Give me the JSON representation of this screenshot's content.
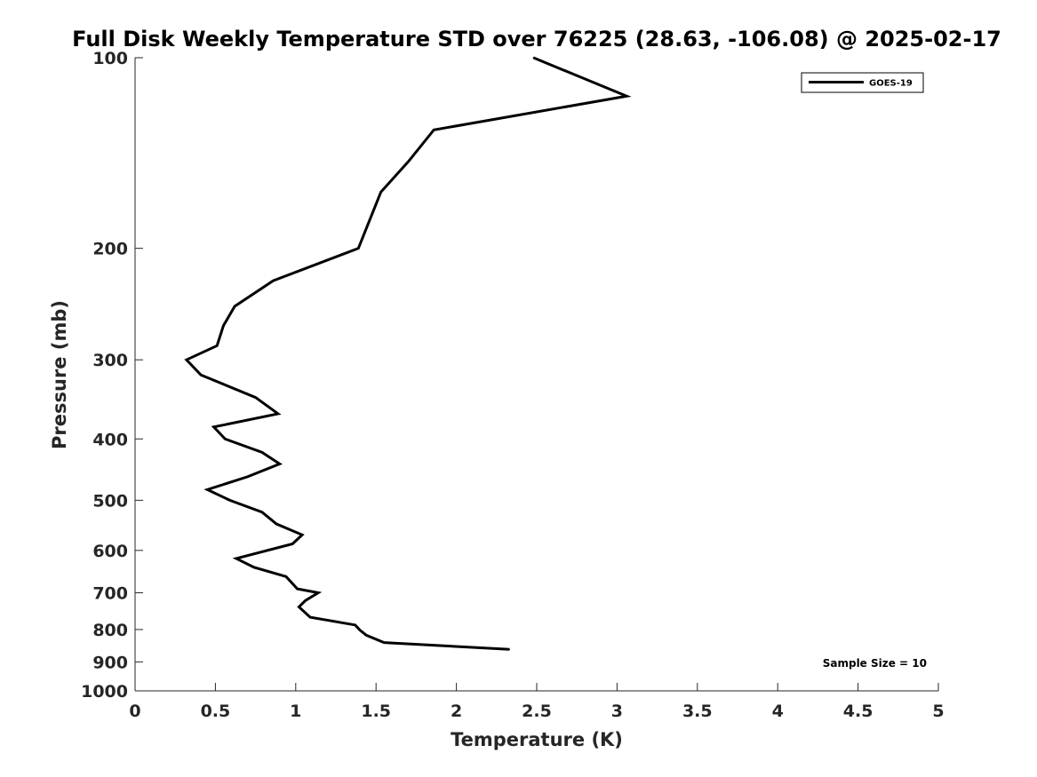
{
  "chart_data": {
    "type": "line",
    "title": "Full Disk Weekly Temperature STD over 76225 (28.63, -106.08) @ 2025-02-17",
    "xlabel": "Temperature (K)",
    "ylabel": "Pressure (mb)",
    "xlim": [
      0,
      5
    ],
    "ylim": [
      100,
      1000
    ],
    "yscale": "log",
    "y_reversed": true,
    "grid": false,
    "legend_position": "top-right",
    "xticks": [
      0,
      0.5,
      1,
      1.5,
      2,
      2.5,
      3,
      3.5,
      4,
      4.5,
      5
    ],
    "xtick_labels": [
      "0",
      "0.5",
      "1",
      "1.5",
      "2",
      "2.5",
      "3",
      "3.5",
      "4",
      "4.5",
      "5"
    ],
    "yticks": [
      100,
      200,
      300,
      400,
      500,
      600,
      700,
      800,
      900,
      1000
    ],
    "ytick_labels": [
      "100",
      "200",
      "300",
      "400",
      "500",
      "600",
      "700",
      "800",
      "900",
      "1000"
    ],
    "series": [
      {
        "name": "GOES-19",
        "color": "#000000",
        "points": [
          {
            "x": 2.48,
            "y": 100
          },
          {
            "x": 3.06,
            "y": 115
          },
          {
            "x": 1.86,
            "y": 130
          },
          {
            "x": 1.7,
            "y": 146
          },
          {
            "x": 1.53,
            "y": 163
          },
          {
            "x": 1.39,
            "y": 200
          },
          {
            "x": 0.86,
            "y": 225
          },
          {
            "x": 0.62,
            "y": 247
          },
          {
            "x": 0.55,
            "y": 265
          },
          {
            "x": 0.51,
            "y": 285
          },
          {
            "x": 0.32,
            "y": 300
          },
          {
            "x": 0.41,
            "y": 317
          },
          {
            "x": 0.75,
            "y": 344
          },
          {
            "x": 0.89,
            "y": 365
          },
          {
            "x": 0.49,
            "y": 383
          },
          {
            "x": 0.56,
            "y": 400
          },
          {
            "x": 0.79,
            "y": 420
          },
          {
            "x": 0.9,
            "y": 438
          },
          {
            "x": 0.7,
            "y": 459
          },
          {
            "x": 0.45,
            "y": 481
          },
          {
            "x": 0.59,
            "y": 500
          },
          {
            "x": 0.79,
            "y": 522
          },
          {
            "x": 0.88,
            "y": 545
          },
          {
            "x": 1.04,
            "y": 567
          },
          {
            "x": 0.98,
            "y": 586
          },
          {
            "x": 0.63,
            "y": 618
          },
          {
            "x": 0.74,
            "y": 638
          },
          {
            "x": 0.94,
            "y": 660
          },
          {
            "x": 1.01,
            "y": 690
          },
          {
            "x": 1.14,
            "y": 700
          },
          {
            "x": 1.06,
            "y": 720
          },
          {
            "x": 1.02,
            "y": 737
          },
          {
            "x": 1.09,
            "y": 765
          },
          {
            "x": 1.37,
            "y": 787
          },
          {
            "x": 1.4,
            "y": 802
          },
          {
            "x": 1.44,
            "y": 817
          },
          {
            "x": 1.55,
            "y": 839
          },
          {
            "x": 2.33,
            "y": 860
          }
        ]
      }
    ],
    "annotation": "Sample Size = 10"
  }
}
